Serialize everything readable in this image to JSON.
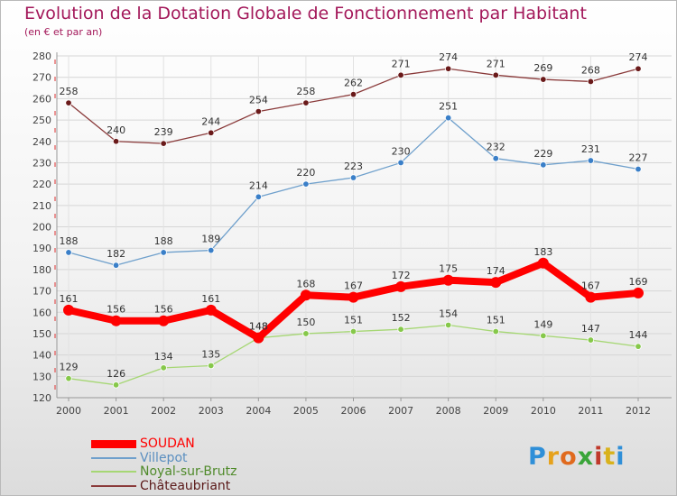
{
  "title": "Evolution de la Dotation Globale de Fonctionnement par Habitant",
  "subtitle": "(en € et par an)",
  "logo": {
    "letters": [
      {
        "ch": "P",
        "color": "#2f8fd8"
      },
      {
        "ch": "r",
        "color": "#e6a21c"
      },
      {
        "ch": "o",
        "color": "#e06a1e"
      },
      {
        "ch": "x",
        "color": "#3aa53a"
      },
      {
        "ch": "i",
        "color": "#c0392b"
      },
      {
        "ch": "t",
        "color": "#d9b21c"
      },
      {
        "ch": "i",
        "color": "#2f8fd8"
      }
    ]
  },
  "chart_data": {
    "type": "line",
    "title": "Evolution de la Dotation Globale de Fonctionnement par Habitant",
    "subtitle": "(en € et par an)",
    "x": [
      "2000",
      "2001",
      "2002",
      "2003",
      "2004",
      "2005",
      "2006",
      "2007",
      "2008",
      "2009",
      "2010",
      "2011",
      "2012"
    ],
    "ylim": [
      120,
      280
    ],
    "yticks": [
      120,
      130,
      140,
      150,
      160,
      170,
      180,
      190,
      200,
      210,
      220,
      230,
      240,
      250,
      260,
      270,
      280
    ],
    "grid": true,
    "legend": "bottom-left",
    "series": [
      {
        "name": "SOUDAN",
        "color": "#ff0000",
        "legend_color": "#ff0000",
        "marker": "#ff0000",
        "values": [
          161,
          156,
          156,
          161,
          148,
          168,
          167,
          172,
          175,
          174,
          183,
          167,
          169
        ]
      },
      {
        "name": "Villepot",
        "color": "#6fa0cc",
        "legend_color": "#5b8fc0",
        "marker": "#3a7fc8",
        "values": [
          188,
          182,
          188,
          189,
          214,
          220,
          223,
          230,
          251,
          232,
          229,
          231,
          227
        ]
      },
      {
        "name": "Noyal-sur-Brutz",
        "color": "#a6d774",
        "legend_color": "#4f8a2a",
        "marker": "#86c84a",
        "values": [
          129,
          126,
          134,
          135,
          148,
          150,
          151,
          152,
          154,
          151,
          149,
          147,
          144
        ]
      },
      {
        "name": "Châteaubriant",
        "color": "#8a3a3a",
        "legend_color": "#5a1818",
        "marker": "#6a1a1a",
        "values": [
          258,
          240,
          239,
          244,
          254,
          258,
          262,
          271,
          274,
          271,
          269,
          268,
          274
        ]
      }
    ]
  }
}
